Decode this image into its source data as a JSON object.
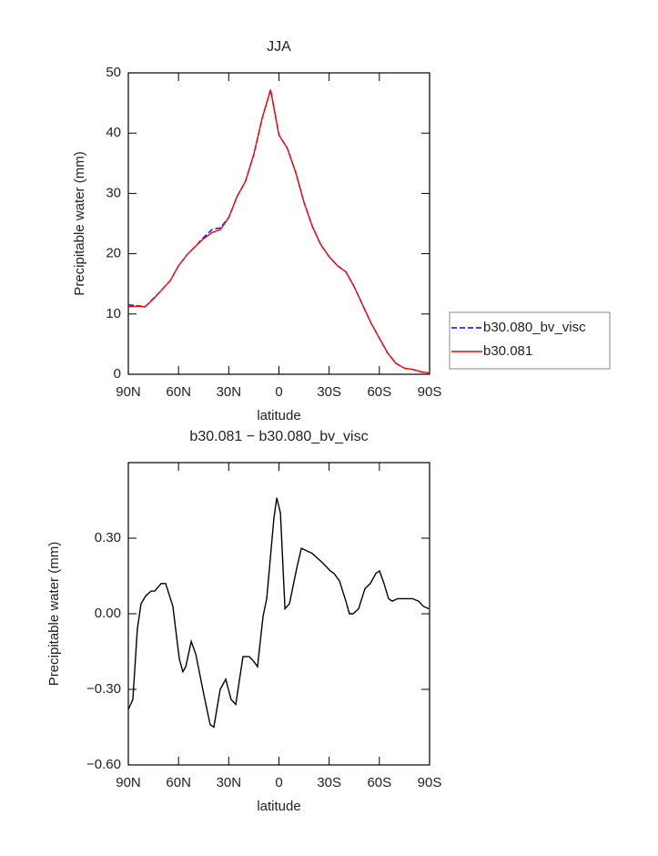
{
  "chart_data": [
    {
      "type": "line",
      "title": "JJA",
      "xlabel": "latitude",
      "ylabel": "Precipitable water (mm)",
      "x": [
        90,
        85,
        80,
        75,
        70,
        65,
        60,
        55,
        50,
        45,
        40,
        35,
        30,
        25,
        20,
        15,
        10,
        5,
        0,
        -5,
        -10,
        -15,
        -20,
        -25,
        -30,
        -35,
        -40,
        -45,
        -50,
        -55,
        -60,
        -65,
        -70,
        -75,
        -80,
        -85,
        -90
      ],
      "series": [
        {
          "name": "b30.080_bv_visc",
          "color": "#0000ff",
          "line_style": "dashed",
          "values": [
            11.5,
            11.4,
            11.2,
            12.6,
            14,
            15.5,
            18,
            19.8,
            21.2,
            22.7,
            24,
            24.3,
            26,
            29.5,
            32,
            36.5,
            42.5,
            47.2,
            39.7,
            37.5,
            33.5,
            28.5,
            24.5,
            21.5,
            19.5,
            18,
            17,
            14.5,
            11.5,
            8.5,
            6,
            3.5,
            1.8,
            1,
            0.8,
            0.4,
            0.2
          ]
        },
        {
          "name": "b30.081",
          "color": "#ff0000",
          "line_style": "solid",
          "values": [
            11.2,
            11.3,
            11.2,
            12.5,
            14,
            15.5,
            18,
            19.8,
            21.2,
            22.5,
            23.5,
            24,
            26,
            29.5,
            32,
            36.5,
            42.5,
            47.2,
            39.7,
            37.5,
            33.5,
            28.5,
            24.5,
            21.5,
            19.5,
            18,
            17,
            14.5,
            11.5,
            8.5,
            6,
            3.5,
            1.8,
            1,
            0.8,
            0.4,
            0.2
          ]
        }
      ],
      "xlim": [
        90,
        -90
      ],
      "ylim": [
        0,
        50
      ],
      "xticks": [
        {
          "value": 90,
          "label": "90N"
        },
        {
          "value": 60,
          "label": "60N"
        },
        {
          "value": 30,
          "label": "30N"
        },
        0,
        {
          "value": -30,
          "label": "30S"
        },
        {
          "value": -60,
          "label": "60S"
        },
        {
          "value": -90,
          "label": "90S"
        }
      ],
      "yticks": [
        0,
        10,
        20,
        30,
        40,
        50
      ],
      "legend": "right"
    },
    {
      "type": "line",
      "title": "b30.081 − b30.080_bv_visc",
      "xlabel": "latitude",
      "ylabel": "Precipitable water (mm)",
      "x": [
        90,
        87.3,
        84.6,
        82.4,
        79.7,
        76.4,
        74.2,
        70.4,
        67.7,
        63.4,
        59.5,
        57.4,
        55.7,
        52.4,
        49.7,
        44.9,
        41.1,
        38.9,
        35.1,
        31.8,
        28.6,
        25.8,
        21.5,
        17.7,
        15,
        12.8,
        9.5,
        7.3,
        3,
        1.3,
        -0.9,
        -3.6,
        -6.3,
        -10.6,
        -13.4,
        -16.6,
        -19.8,
        -23.1,
        -26.4,
        -30.7,
        -32.9,
        -36.2,
        -40,
        -42.1,
        -44.3,
        -47.6,
        -51.4,
        -54.6,
        -57.9,
        -60.1,
        -62.8,
        -65.5,
        -67.7,
        -71,
        -74.8,
        -79.7,
        -83.5,
        -86.2,
        -89.5
      ],
      "series": [
        {
          "color": "#000000",
          "line_style": "solid",
          "values": [
            -0.38,
            -0.34,
            -0.06,
            0.04,
            0.07,
            0.09,
            0.09,
            0.12,
            0.12,
            0.03,
            -0.18,
            -0.23,
            -0.21,
            -0.11,
            -0.16,
            -0.32,
            -0.44,
            -0.45,
            -0.3,
            -0.26,
            -0.34,
            -0.36,
            -0.17,
            -0.17,
            -0.19,
            -0.21,
            -0.01,
            0.06,
            0.38,
            0.46,
            0.4,
            0.02,
            0.04,
            0.18,
            0.26,
            0.25,
            0.24,
            0.22,
            0.2,
            0.17,
            0.16,
            0.13,
            0.05,
            0,
            0,
            0.02,
            0.1,
            0.12,
            0.16,
            0.17,
            0.12,
            0.06,
            0.05,
            0.06,
            0.06,
            0.06,
            0.05,
            0.03,
            0.02
          ]
        }
      ],
      "xlim": [
        90,
        -90
      ],
      "ylim": [
        -0.6,
        0.6
      ],
      "xticks": [
        {
          "value": 90,
          "label": "90N"
        },
        {
          "value": 60,
          "label": "60N"
        },
        {
          "value": 30,
          "label": "30N"
        },
        0,
        {
          "value": -30,
          "label": "30S"
        },
        {
          "value": -60,
          "label": "60S"
        },
        {
          "value": -90,
          "label": "90S"
        }
      ],
      "yticks": [
        {
          "value": -0.6,
          "label": "−0.60"
        },
        {
          "value": -0.3,
          "label": "−0.30"
        },
        {
          "value": 0,
          "label": "0.00"
        },
        {
          "value": 0.3,
          "label": "0.30"
        }
      ]
    }
  ]
}
